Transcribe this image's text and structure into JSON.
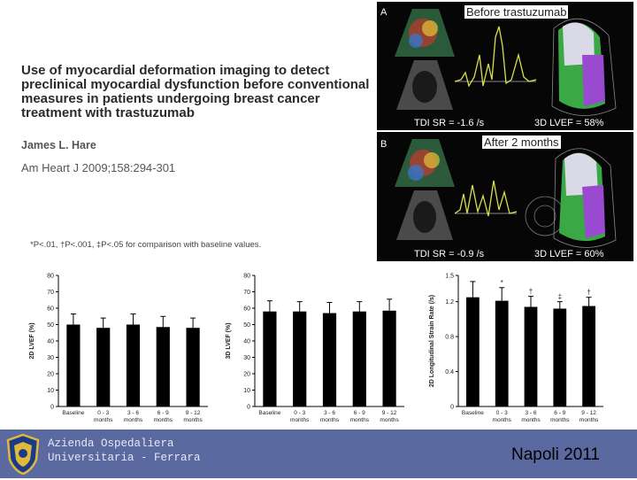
{
  "slide": {
    "title": "Use of myocardial deformation imaging to detect preclinical myocardial dysfunction before conventional measures in patients undergoing breast cancer treatment with trastuzumab",
    "author": "James L. Hare",
    "journal": "Am Heart J 2009;158:294-301",
    "footnote": "*P<.01, †P<.001, ‡P<.05 for comparison with baseline values."
  },
  "panel_a": {
    "letter": "A",
    "caption": "Before trastuzumab",
    "tdi": "TDI SR = -1.6 /s",
    "lvef": "3D LVEF = 58%"
  },
  "panel_b": {
    "letter": "B",
    "caption": "After 2 months",
    "tdi": "TDI SR = -0.9 /s",
    "lvef": "3D LVEF = 60%"
  },
  "footer": {
    "org_line1": "Azienda Ospedaliera",
    "org_line2": "Universitaria - Ferrara",
    "event": "Napoli 2011",
    "background": "#5a6aa0"
  },
  "chart_data": [
    {
      "type": "bar",
      "categories": [
        [
          "Baseline"
        ],
        [
          "0 - 3",
          "months"
        ],
        [
          "3 - 6",
          "months"
        ],
        [
          "6 - 9",
          "months"
        ],
        [
          "9 - 12",
          "months"
        ]
      ],
      "values": [
        50,
        48,
        50,
        48.5,
        48
      ],
      "errors": [
        6.5,
        6,
        6.5,
        6.5,
        6
      ],
      "annotations": [
        "",
        "",
        "",
        "",
        ""
      ],
      "ylabel": "2D LVEF (%)",
      "ylim": [
        0,
        80
      ],
      "yticks": [
        0,
        10,
        20,
        30,
        40,
        50,
        60,
        70,
        80
      ]
    },
    {
      "type": "bar",
      "categories": [
        [
          "Baseline"
        ],
        [
          "0 - 3",
          "months"
        ],
        [
          "3 - 6",
          "months"
        ],
        [
          "6 - 9",
          "months"
        ],
        [
          "9 - 12",
          "months"
        ]
      ],
      "values": [
        58,
        58,
        57,
        58,
        58.5
      ],
      "errors": [
        6.5,
        6,
        6.5,
        6,
        7
      ],
      "annotations": [
        "",
        "",
        "",
        "",
        ""
      ],
      "ylabel": "3D LVEF (%)",
      "ylim": [
        0,
        80
      ],
      "yticks": [
        0,
        10,
        20,
        30,
        40,
        50,
        60,
        70,
        80
      ]
    },
    {
      "type": "bar",
      "categories": [
        [
          "Baseline"
        ],
        [
          "0 - 3",
          "months"
        ],
        [
          "3 - 6",
          "months"
        ],
        [
          "6 - 9",
          "months"
        ],
        [
          "9 - 12",
          "months"
        ]
      ],
      "values": [
        1.25,
        1.21,
        1.14,
        1.12,
        1.15
      ],
      "errors": [
        0.18,
        0.15,
        0.12,
        0.08,
        0.1
      ],
      "annotations": [
        "",
        "*",
        "†",
        "‡",
        "†"
      ],
      "ylabel": "2D Longitudinal Strain Rate (/s)",
      "ylim": [
        0,
        1.5
      ],
      "yticks": [
        0,
        0.4,
        0.8,
        1.2,
        1.5
      ]
    }
  ]
}
